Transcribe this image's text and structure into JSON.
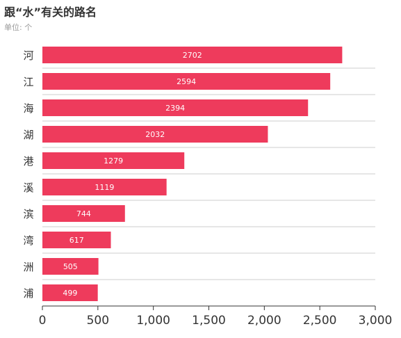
{
  "chart_data": {
    "type": "bar",
    "orientation": "horizontal",
    "title": "跟“水”有关的路名",
    "subtitle": "单位: 个",
    "categories": [
      "河",
      "江",
      "海",
      "湖",
      "港",
      "溪",
      "滨",
      "湾",
      "洲",
      "浦"
    ],
    "values": [
      2702,
      2594,
      2394,
      2032,
      1279,
      1119,
      744,
      617,
      505,
      499
    ],
    "xlim": [
      0,
      3000
    ],
    "xticks": [
      0,
      500,
      1000,
      1500,
      2000,
      2500,
      3000
    ],
    "xtick_labels": [
      "0",
      "500",
      "1,000",
      "1,500",
      "2,000",
      "2,500",
      "3,000"
    ],
    "bar_color": "#ee3b5c",
    "grid": true,
    "data_labels": true
  }
}
